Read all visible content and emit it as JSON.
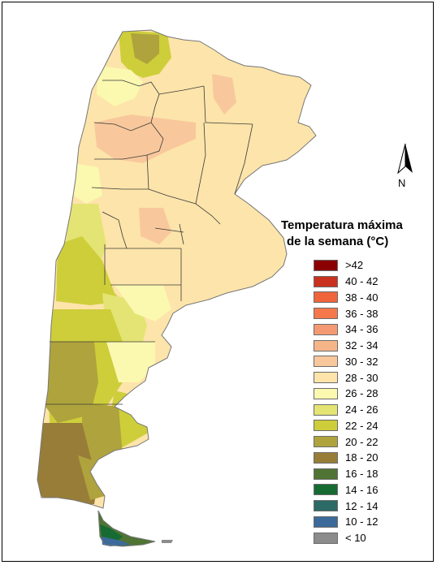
{
  "legend": {
    "title_line1": "Temperatura máxima",
    "title_line2": "de la semana (°C)",
    "items": [
      {
        "label": ">42",
        "color": "#8b0000"
      },
      {
        "label": "40 - 42",
        "color": "#c8321e"
      },
      {
        "label": "38 - 40",
        "color": "#f0643c"
      },
      {
        "label": "36 - 38",
        "color": "#f5784b"
      },
      {
        "label": "34 - 36",
        "color": "#f49a72"
      },
      {
        "label": "32 - 34",
        "color": "#f6b489"
      },
      {
        "label": "30 - 32",
        "color": "#f8c89c"
      },
      {
        "label": "28 - 30",
        "color": "#fde4aa"
      },
      {
        "label": "26 - 28",
        "color": "#fbf8b0"
      },
      {
        "label": "24 - 26",
        "color": "#e4e474"
      },
      {
        "label": "22 - 24",
        "color": "#cece3a"
      },
      {
        "label": "20 - 22",
        "color": "#afa33d"
      },
      {
        "label": "18 - 20",
        "color": "#977d38"
      },
      {
        "label": "16 - 18",
        "color": "#4f7433"
      },
      {
        "label": "14 - 16",
        "color": "#166b33"
      },
      {
        "label": "12 - 14",
        "color": "#2c6a66"
      },
      {
        "label": "10 - 12",
        "color": "#3c6a9a"
      },
      {
        "label": "< 10",
        "color": "#8c8c8c"
      }
    ]
  },
  "north_arrow": {
    "letter": "N",
    "icon": "north-arrow-icon"
  }
}
